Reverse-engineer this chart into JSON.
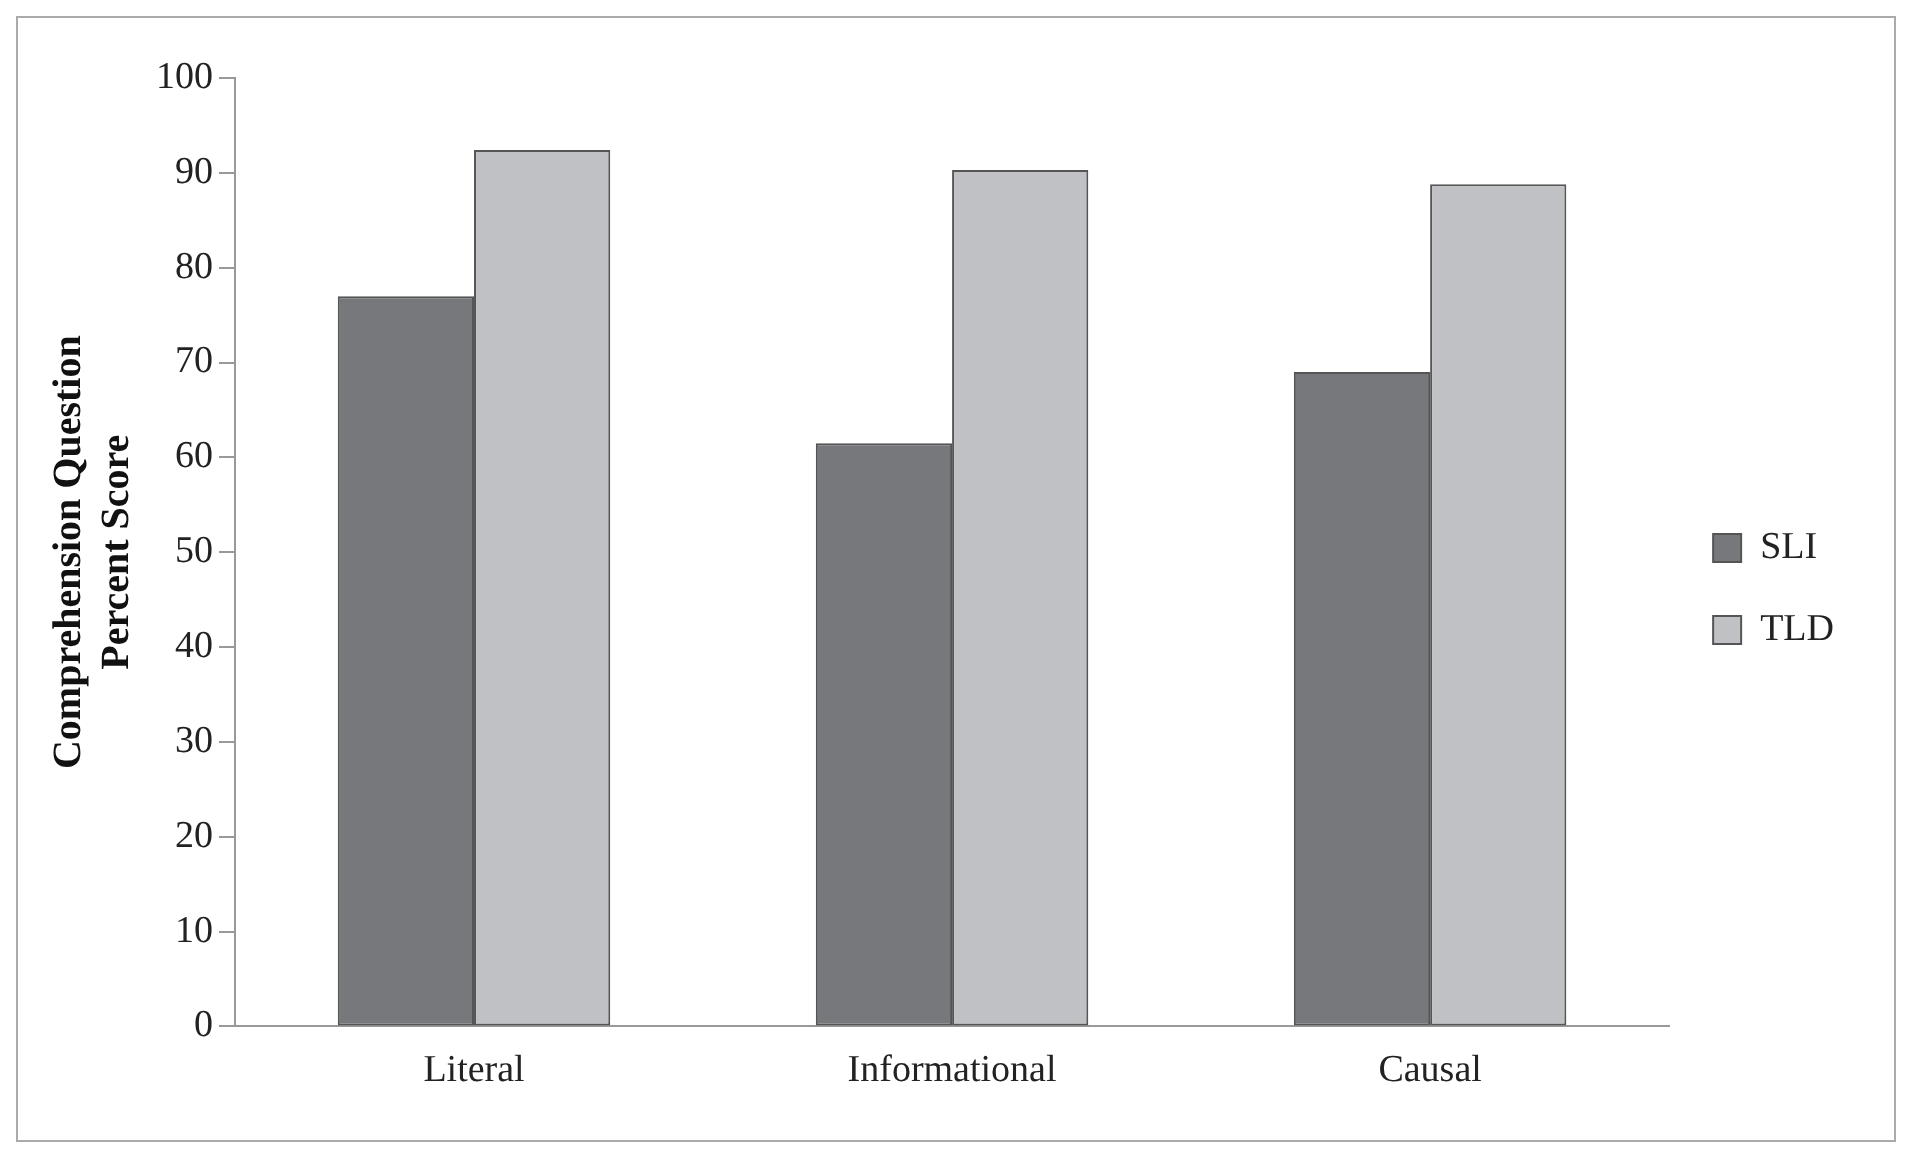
{
  "chart_data": {
    "type": "bar",
    "ylabel": "Comprehension Question\nPercent Score",
    "categories": [
      "Literal",
      "Informational",
      "Causal"
    ],
    "series": [
      {
        "name": "SLI",
        "color": "#77787b",
        "values": [
          77,
          61.5,
          69
        ]
      },
      {
        "name": "TLD",
        "color": "#c0c1c4",
        "values": [
          92.4,
          90.3,
          88.8
        ]
      }
    ],
    "ylim": [
      0,
      100
    ],
    "yticks": [
      0,
      10,
      20,
      30,
      40,
      50,
      60,
      70,
      80,
      90,
      100
    ],
    "grid": false,
    "legend": "right"
  }
}
